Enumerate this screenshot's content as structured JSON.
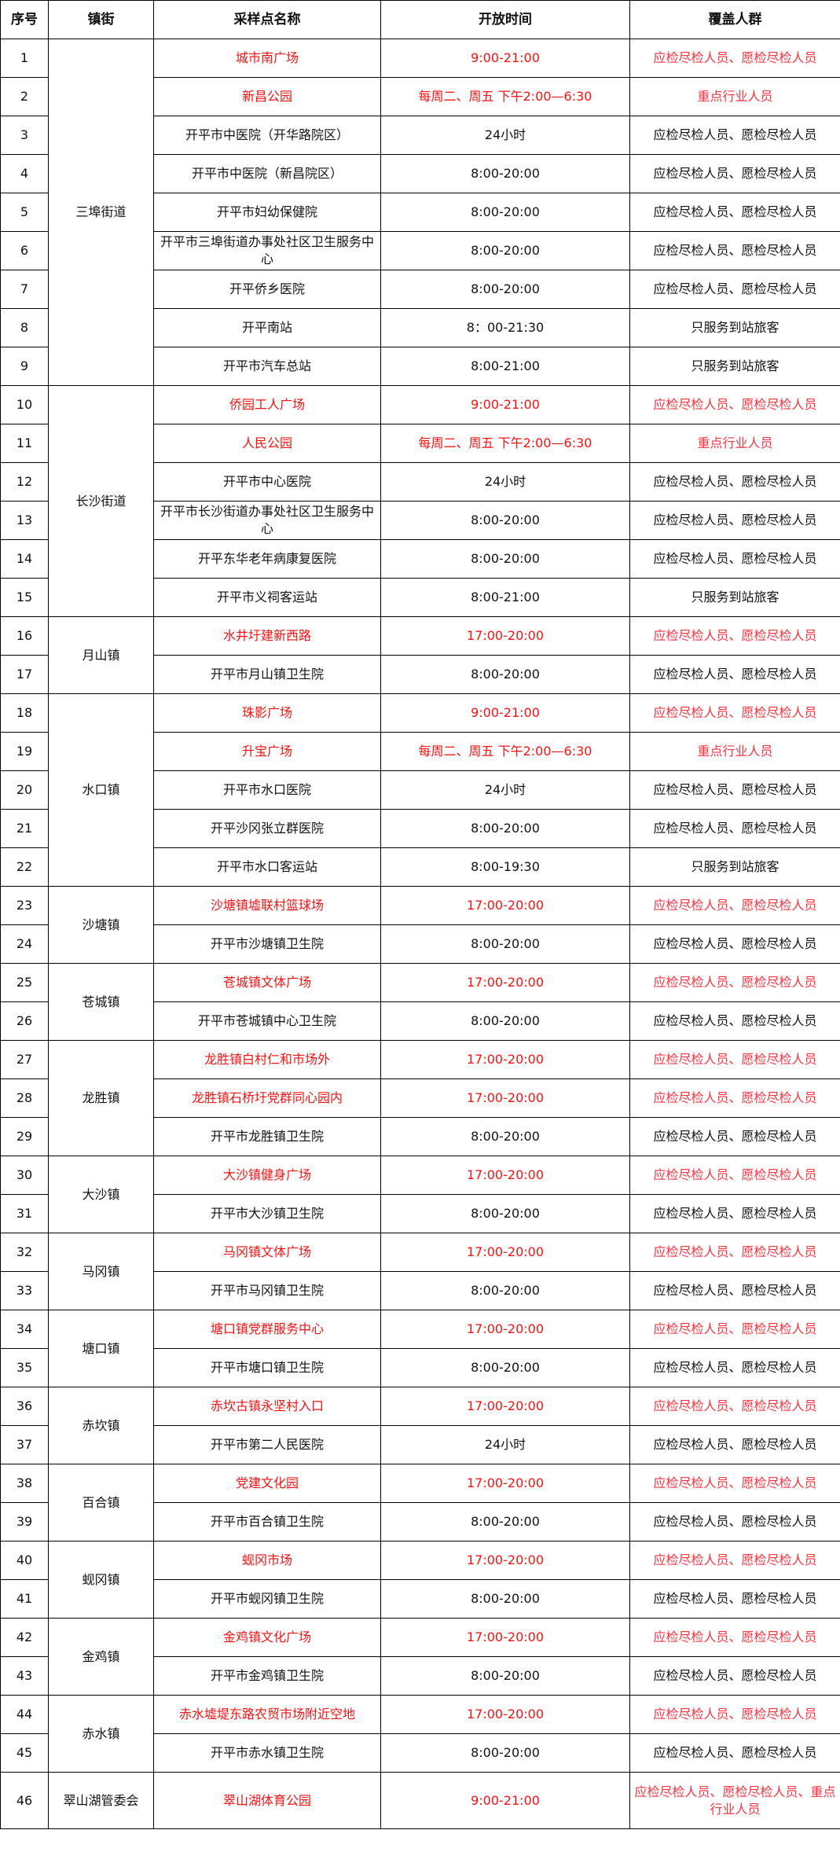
{
  "headers": [
    "序号",
    "镇街",
    "采样点名称",
    "开放时间",
    "覆盖人群"
  ],
  "colors": {
    "highlight": "#ff1010",
    "text": "#111111"
  },
  "groups": [
    {
      "district": "三埠街道",
      "rows": [
        [
          "1",
          "城市南广场",
          "9:00-21:00",
          "应检尽检人员、愿检尽检人员",
          true
        ],
        [
          "2",
          "新昌公园",
          "每周二、周五 下午2:00—6:30",
          "重点行业人员",
          true
        ],
        [
          "3",
          "开平市中医院（开华路院区）",
          "24小时",
          "应检尽检人员、愿检尽检人员",
          false
        ],
        [
          "4",
          "开平市中医院（新昌院区）",
          "8:00-20:00",
          "应检尽检人员、愿检尽检人员",
          false
        ],
        [
          "5",
          "开平市妇幼保健院",
          "8:00-20:00",
          "应检尽检人员、愿检尽检人员",
          false
        ],
        [
          "6",
          "开平市三埠街道办事处社区卫生服务中心",
          "8:00-20:00",
          "应检尽检人员、愿检尽检人员",
          false
        ],
        [
          "7",
          "开平侨乡医院",
          "8:00-20:00",
          "应检尽检人员、愿检尽检人员",
          false
        ],
        [
          "8",
          "开平南站",
          "8：00-21:30",
          "只服务到站旅客",
          false
        ],
        [
          "9",
          "开平市汽车总站",
          "8:00-21:00",
          "只服务到站旅客",
          false
        ]
      ]
    },
    {
      "district": "长沙街道",
      "rows": [
        [
          "10",
          "侨园工人广场",
          "9:00-21:00",
          "应检尽检人员、愿检尽检人员",
          true
        ],
        [
          "11",
          "人民公园",
          "每周二、周五 下午2:00—6:30",
          "重点行业人员",
          true
        ],
        [
          "12",
          "开平市中心医院",
          "24小时",
          "应检尽检人员、愿检尽检人员",
          false
        ],
        [
          "13",
          "开平市长沙街道办事处社区卫生服务中心",
          "8:00-20:00",
          "应检尽检人员、愿检尽检人员",
          false
        ],
        [
          "14",
          "开平东华老年病康复医院",
          "8:00-20:00",
          "应检尽检人员、愿检尽检人员",
          false
        ],
        [
          "15",
          "开平市义祠客运站",
          "8:00-21:00",
          "只服务到站旅客",
          false
        ]
      ]
    },
    {
      "district": "月山镇",
      "rows": [
        [
          "16",
          "水井圩建新西路",
          "17:00-20:00",
          "应检尽检人员、愿检尽检人员",
          true
        ],
        [
          "17",
          "开平市月山镇卫生院",
          "8:00-20:00",
          "应检尽检人员、愿检尽检人员",
          false
        ]
      ]
    },
    {
      "district": "水口镇",
      "rows": [
        [
          "18",
          "珠影广场",
          "9:00-21:00",
          "应检尽检人员、愿检尽检人员",
          true
        ],
        [
          "19",
          "升宝广场",
          "每周二、周五 下午2:00—6:30",
          "重点行业人员",
          true
        ],
        [
          "20",
          "开平市水口医院",
          "24小时",
          "应检尽检人员、愿检尽检人员",
          false
        ],
        [
          "21",
          "开平沙冈张立群医院",
          "8:00-20:00",
          "应检尽检人员、愿检尽检人员",
          false
        ],
        [
          "22",
          "开平市水口客运站",
          "8:00-19:30",
          "只服务到站旅客",
          false
        ]
      ]
    },
    {
      "district": "沙塘镇",
      "rows": [
        [
          "23",
          "沙塘镇墟联村篮球场",
          "17:00-20:00",
          "应检尽检人员、愿检尽检人员",
          true
        ],
        [
          "24",
          "开平市沙塘镇卫生院",
          "8:00-20:00",
          "应检尽检人员、愿检尽检人员",
          false
        ]
      ]
    },
    {
      "district": "苍城镇",
      "rows": [
        [
          "25",
          "苍城镇文体广场",
          "17:00-20:00",
          "应检尽检人员、愿检尽检人员",
          true
        ],
        [
          "26",
          "开平市苍城镇中心卫生院",
          "8:00-20:00",
          "应检尽检人员、愿检尽检人员",
          false
        ]
      ]
    },
    {
      "district": "龙胜镇",
      "rows": [
        [
          "27",
          "龙胜镇白村仁和市场外",
          "17:00-20:00",
          "应检尽检人员、愿检尽检人员",
          true
        ],
        [
          "28",
          "龙胜镇石桥圩党群同心园内",
          "17:00-20:00",
          "应检尽检人员、愿检尽检人员",
          true
        ],
        [
          "29",
          "开平市龙胜镇卫生院",
          "8:00-20:00",
          "应检尽检人员、愿检尽检人员",
          false
        ]
      ]
    },
    {
      "district": "大沙镇",
      "rows": [
        [
          "30",
          "大沙镇健身广场",
          "17:00-20:00",
          "应检尽检人员、愿检尽检人员",
          true
        ],
        [
          "31",
          "开平市大沙镇卫生院",
          "8:00-20:00",
          "应检尽检人员、愿检尽检人员",
          false
        ]
      ]
    },
    {
      "district": "马冈镇",
      "rows": [
        [
          "32",
          "马冈镇文体广场",
          "17:00-20:00",
          "应检尽检人员、愿检尽检人员",
          true
        ],
        [
          "33",
          "开平市马冈镇卫生院",
          "8:00-20:00",
          "应检尽检人员、愿检尽检人员",
          false
        ]
      ]
    },
    {
      "district": "塘口镇",
      "rows": [
        [
          "34",
          "塘口镇党群服务中心",
          "17:00-20:00",
          "应检尽检人员、愿检尽检人员",
          true
        ],
        [
          "35",
          "开平市塘口镇卫生院",
          "8:00-20:00",
          "应检尽检人员、愿检尽检人员",
          false
        ]
      ]
    },
    {
      "district": "赤坎镇",
      "rows": [
        [
          "36",
          "赤坎古镇永坚村入口",
          "17:00-20:00",
          "应检尽检人员、愿检尽检人员",
          true
        ],
        [
          "37",
          "开平市第二人民医院",
          "24小时",
          "应检尽检人员、愿检尽检人员",
          false
        ]
      ]
    },
    {
      "district": "百合镇",
      "rows": [
        [
          "38",
          "党建文化园",
          "17:00-20:00",
          "应检尽检人员、愿检尽检人员",
          true
        ],
        [
          "39",
          "开平市百合镇卫生院",
          "8:00-20:00",
          "应检尽检人员、愿检尽检人员",
          false
        ]
      ]
    },
    {
      "district": "蚬冈镇",
      "rows": [
        [
          "40",
          "蚬冈市场",
          "17:00-20:00",
          "应检尽检人员、愿检尽检人员",
          true
        ],
        [
          "41",
          "开平市蚬冈镇卫生院",
          "8:00-20:00",
          "应检尽检人员、愿检尽检人员",
          false
        ]
      ]
    },
    {
      "district": "金鸡镇",
      "rows": [
        [
          "42",
          "金鸡镇文化广场",
          "17:00-20:00",
          "应检尽检人员、愿检尽检人员",
          true
        ],
        [
          "43",
          "开平市金鸡镇卫生院",
          "8:00-20:00",
          "应检尽检人员、愿检尽检人员",
          false
        ]
      ]
    },
    {
      "district": "赤水镇",
      "rows": [
        [
          "44",
          "赤水墟堤东路农贸市场附近空地",
          "17:00-20:00",
          "应检尽检人员、愿检尽检人员",
          true
        ],
        [
          "45",
          "开平市赤水镇卫生院",
          "8:00-20:00",
          "应检尽检人员、愿检尽检人员",
          false
        ]
      ]
    },
    {
      "district": "翠山湖管委会",
      "rows": [
        [
          "46",
          "翠山湖体育公园",
          "9:00-21:00",
          "应检尽检人员、愿检尽检人员、重点行业人员",
          true
        ]
      ]
    }
  ]
}
